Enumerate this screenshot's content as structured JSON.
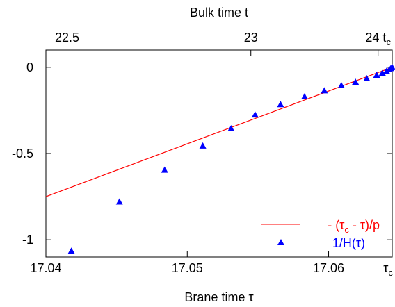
{
  "chart_data": {
    "type": "scatter",
    "xlabel": "Brane time τ",
    "top_xlabel": "Bulk time t",
    "ylabel": "",
    "xlim": [
      17.04,
      17.0645
    ],
    "ylim": [
      -1.1,
      0.1
    ],
    "grid": false,
    "legend_position": "bottom-right",
    "x_ticks": [
      {
        "value": 17.04,
        "label": "17.04"
      },
      {
        "value": 17.05,
        "label": "17.05"
      },
      {
        "value": 17.06,
        "label": "17.06"
      }
    ],
    "x_tick_tau_c": {
      "value": 17.0645,
      "label": "τ",
      "sub": "c"
    },
    "top_ticks": [
      {
        "value": 17.0415,
        "label": "22.5"
      },
      {
        "value": 17.0545,
        "label": "23"
      }
    ],
    "top_tick_t_c": {
      "value": 17.0635,
      "label": "24 t",
      "sub": "c"
    },
    "y_ticks": [
      {
        "value": 0,
        "label": "0"
      },
      {
        "value": -0.5,
        "label": "-0.5"
      },
      {
        "value": -1,
        "label": "-1"
      }
    ],
    "series": [
      {
        "name": "- (τ - τ)/p",
        "legend_parts": [
          "- (τ",
          "c",
          " - τ)/p"
        ],
        "kind": "line",
        "color": "#ff0000",
        "x": [
          17.04,
          17.0645
        ],
        "y": [
          -0.75,
          0.0
        ]
      },
      {
        "name": "1/H(τ)",
        "kind": "scatter",
        "marker": "triangle",
        "color": "#0000ff",
        "x": [
          17.0418,
          17.0452,
          17.0484,
          17.0511,
          17.0531,
          17.0548,
          17.0566,
          17.0583,
          17.0597,
          17.0609,
          17.0619,
          17.0627,
          17.0634,
          17.0638,
          17.0641,
          17.0643,
          17.0644,
          17.0645
        ],
        "y": [
          -1.065,
          -0.78,
          -0.595,
          -0.455,
          -0.355,
          -0.275,
          -0.215,
          -0.17,
          -0.135,
          -0.105,
          -0.085,
          -0.065,
          -0.045,
          -0.033,
          -0.022,
          -0.013,
          -0.006,
          0.0
        ]
      }
    ]
  }
}
